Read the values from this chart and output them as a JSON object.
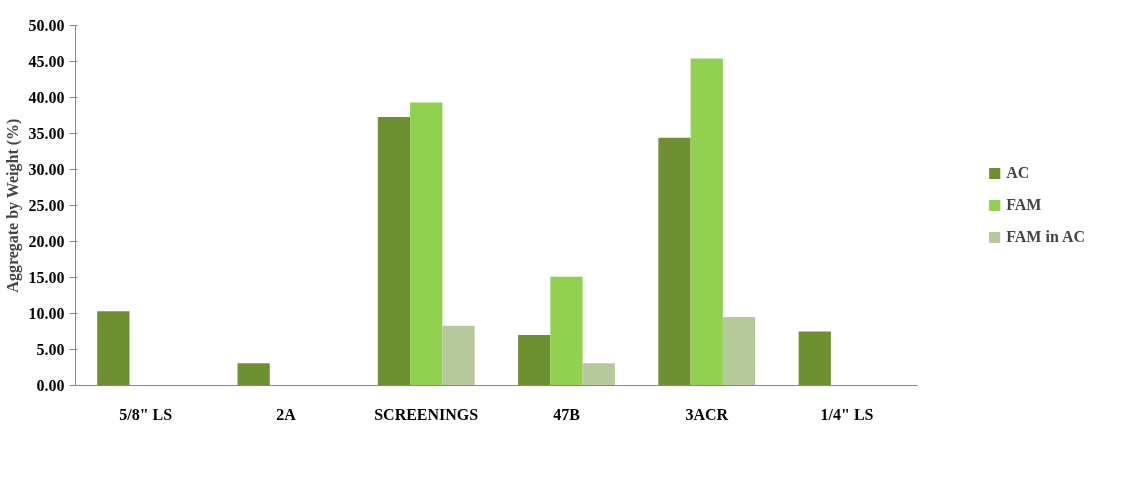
{
  "chart_data": {
    "type": "bar",
    "ylabel": "Aggregate by Weight (%)",
    "categories": [
      "5/8\" LS",
      "2A",
      "SCREENINGS",
      "47B",
      "3ACR",
      "1/4\" LS"
    ],
    "series": [
      {
        "name": "AC",
        "color": "#6f9030",
        "values": [
          10.3,
          3.1,
          37.3,
          7.0,
          34.4,
          7.5
        ]
      },
      {
        "name": "FAM",
        "color": "#92d050",
        "values": [
          null,
          null,
          39.3,
          15.1,
          45.4,
          null
        ]
      },
      {
        "name": "FAM in AC",
        "color": "#b5c99a",
        "values": [
          null,
          null,
          8.3,
          3.1,
          9.5,
          null
        ]
      }
    ],
    "ylim": [
      0,
      50
    ],
    "yticks": [
      {
        "value": 0,
        "label": "0.00"
      },
      {
        "value": 5,
        "label": "5.00"
      },
      {
        "value": 10,
        "label": "10.00"
      },
      {
        "value": 15,
        "label": "15.00"
      },
      {
        "value": 20,
        "label": "20.00"
      },
      {
        "value": 25,
        "label": "25.00"
      },
      {
        "value": 30,
        "label": "30.00"
      },
      {
        "value": 35,
        "label": "35.00"
      },
      {
        "value": 40,
        "label": "40.00"
      },
      {
        "value": 45,
        "label": "45.00"
      },
      {
        "value": 50,
        "label": "50.00"
      }
    ],
    "grid": false,
    "legend": "right"
  }
}
